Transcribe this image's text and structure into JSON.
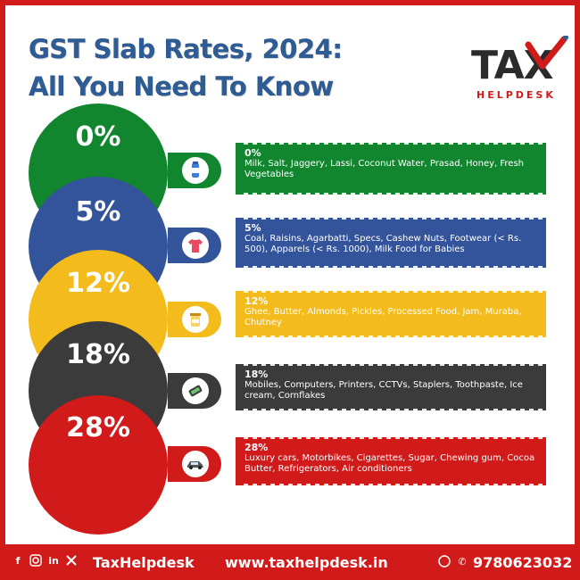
{
  "title": {
    "line1": "GST Slab Rates, 2024:",
    "line2": "All You Need To Know"
  },
  "logo": {
    "main": "TAX",
    "sub": "HELPDESK"
  },
  "colors": {
    "green": "#12862f",
    "blue": "#33549b",
    "yellow": "#f3bb1c",
    "dark": "#3b3b3b",
    "red": "#d11a1a",
    "title": "#2e5d96"
  },
  "slabs": [
    {
      "rate": "0%",
      "label": "0%",
      "items": "Milk, Salt, Jaggery, Lassi, Coconut Water, Prasad, Honey, Fresh Vegetables",
      "icon": "milk-bottle-icon",
      "color": "#12862f"
    },
    {
      "rate": "5%",
      "label": "5%",
      "items": "Coal, Raisins, Agarbatti, Specs, Cashew Nuts, Footwear (< Rs. 500), Apparels (< Rs. 1000), Milk Food for Babies",
      "icon": "tshirt-icon",
      "color": "#33549b"
    },
    {
      "rate": "12%",
      "label": "12%",
      "items": "Ghee, Butter, Almonds, Pickles, Processed Food, Jam, Muraba, Chutney",
      "icon": "jar-icon",
      "color": "#f3bb1c"
    },
    {
      "rate": "18%",
      "label": "18%",
      "items": "Mobiles, Computers, Printers, CCTVs, Staplers, Toothpaste, Ice cream, Cornflakes",
      "icon": "mobile-phone-icon",
      "color": "#3b3b3b"
    },
    {
      "rate": "28%",
      "label": "28%",
      "items": "Luxury cars, Motorbikes, Cigarettes, Sugar, Chewing gum, Cocoa Butter, Refrigerators, Air conditioners",
      "icon": "car-icon",
      "color": "#d11a1a"
    }
  ],
  "footer": {
    "handle": "TaxHelpdesk",
    "website": "www.taxhelpdesk.in",
    "phone": "9780623032",
    "social_icons": [
      "facebook-icon",
      "instagram-icon",
      "linkedin-icon",
      "x-icon"
    ],
    "contact_icons": [
      "whatsapp-icon",
      "phone-icon"
    ]
  }
}
